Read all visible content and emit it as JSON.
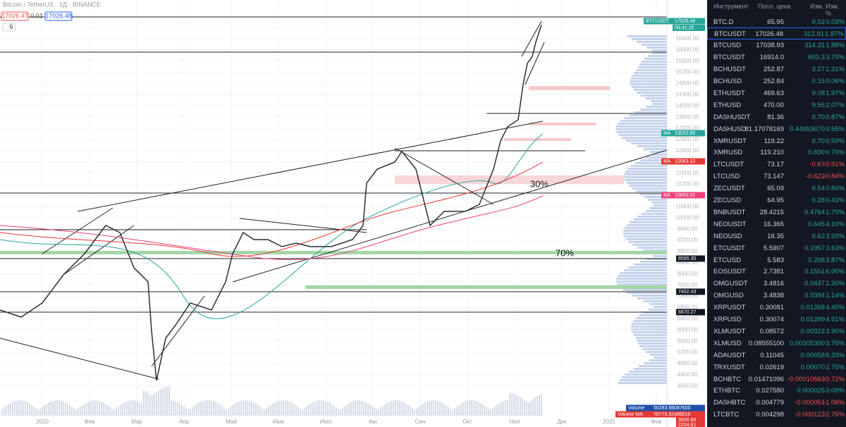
{
  "header": {
    "symbol": "Bitcoin / TetherUS · 1Д · BINANCE",
    "bid": "17026.47",
    "spread": "0.01",
    "ask": "17026.48",
    "indicators_count": "6"
  },
  "price_tags": [
    {
      "label": "BTCUSDT",
      "value": "17026.48",
      "extra": "09:41:25"
    },
    {
      "label": "MA",
      "value": "13032.69"
    },
    {
      "label": "MA",
      "value": "12063.10"
    },
    {
      "label": "MA",
      "value": "10850.02"
    },
    {
      "value": "8595.35"
    },
    {
      "value": "7402.43"
    },
    {
      "value": "6670.27"
    },
    {
      "label": "Volume",
      "value": "50283.98087600"
    },
    {
      "label": "Volume MA",
      "value": "78775.32489010"
    },
    {
      "value": "3600.69"
    },
    {
      "value": "2204.81"
    }
  ],
  "annotations": [
    "30%",
    "70%"
  ],
  "price_axis": [
    "16800.00",
    "16400.00",
    "16000.00",
    "15600.00",
    "15200.00",
    "14800.00",
    "14400.00",
    "14000.00",
    "13600.00",
    "13200.00",
    "12800.00",
    "12400.00",
    "12000.00",
    "11600.00",
    "11200.00",
    "10800.00",
    "10400.00",
    "10000.00",
    "9600.00",
    "9200.00",
    "8800.00",
    "8400.00",
    "8000.00",
    "7600.00",
    "7200.00",
    "6800.00",
    "6400.00",
    "6000.00",
    "5600.00",
    "5200.00",
    "4800.00",
    "4400.00",
    "4000.00"
  ],
  "time_axis": [
    "2020",
    "Фев",
    "Мар",
    "Апр",
    "Май",
    "Июн",
    "Июл",
    "Авг",
    "Сен",
    "Окт",
    "Ноя",
    "Дек",
    "2021",
    "Фев"
  ],
  "watchlist": {
    "columns": [
      "Инструмент",
      "Посл. цена",
      "Изм.",
      "Изм. %"
    ],
    "rows": [
      [
        "BTC.D",
        "65.95",
        "0.02",
        "0.03%"
      ],
      [
        "BTCUSDT",
        "17026.48",
        "312.91",
        "1.87%"
      ],
      [
        "BTCUSD",
        "17038.93",
        "314.31",
        "1.88%"
      ],
      [
        "BTCUSDT",
        "16914.0",
        "603.3",
        "3.70%"
      ],
      [
        "BCHUSDT",
        "252.87",
        "3.27",
        "1.31%"
      ],
      [
        "BCHUSD",
        "252.84",
        "0.15",
        "0.06%"
      ],
      [
        "ETHUSDT",
        "469.63",
        "9.08",
        "1.97%"
      ],
      [
        "ETHUSD",
        "470.00",
        "9.55",
        "2.07%"
      ],
      [
        "DASHUSDT",
        "81.36",
        "0.70",
        "0.87%"
      ],
      [
        "DASHUSD",
        "81.17078169",
        "0.44653670",
        "0.55%"
      ],
      [
        "XMRUSDT",
        "119.22",
        "0.70",
        "0.59%"
      ],
      [
        "XMRUSD",
        "119.210",
        "0.830",
        "0.70%"
      ],
      [
        "LTCUSDT",
        "73.17",
        "-0.67",
        "-0.91%"
      ],
      [
        "LTCUSD",
        "73.147",
        "-0.622",
        "-0.84%"
      ],
      [
        "ZECUSDT",
        "65.09",
        "0.54",
        "0.84%"
      ],
      [
        "ZECUSD",
        "64.95",
        "0.28",
        "0.43%"
      ],
      [
        "BNBUSDT",
        "28.4215",
        "0.4764",
        "1.70%"
      ],
      [
        "NEOUSDT",
        "16.365",
        "0.645",
        "4.10%"
      ],
      [
        "NEOUSD",
        "16.35",
        "0.62",
        "3.93%"
      ],
      [
        "ETCUSDT",
        "5.5907",
        "0.1957",
        "3.63%"
      ],
      [
        "ETCUSD",
        "5.583",
        "0.208",
        "3.87%"
      ],
      [
        "EOSUSDT",
        "2.7381",
        "0.1551",
        "6.00%"
      ],
      [
        "OMGUSDT",
        "3.4816",
        "0.0447",
        "1.30%"
      ],
      [
        "OMGUSD",
        "3.4838",
        "0.0394",
        "1.14%"
      ],
      [
        "XRPUSDT",
        "0.30081",
        "0.01268",
        "4.40%"
      ],
      [
        "XRPUSD",
        "0.30074",
        "0.01299",
        "4.51%"
      ],
      [
        "XLMUSDT",
        "0.08572",
        "0.00322",
        "3.90%"
      ],
      [
        "XLMUSD",
        "0.08555100",
        "0.00305300",
        "3.70%"
      ],
      [
        "ADAUSDT",
        "0.11045",
        "0.00658",
        "6.33%"
      ],
      [
        "TRXUSDT",
        "0.02619",
        "0.00070",
        "2.75%"
      ],
      [
        "BCHBTC",
        "0.01471096",
        "-0.00010663",
        "-0.72%"
      ],
      [
        "ETHBTC",
        "0.027580",
        "0.000025",
        "0.09%"
      ],
      [
        "DASHBTC",
        "0.004779",
        "-0.000051",
        "-1.06%"
      ],
      [
        "LTCBTC",
        "0.004298",
        "-0.000122",
        "-2.76%"
      ]
    ]
  }
}
